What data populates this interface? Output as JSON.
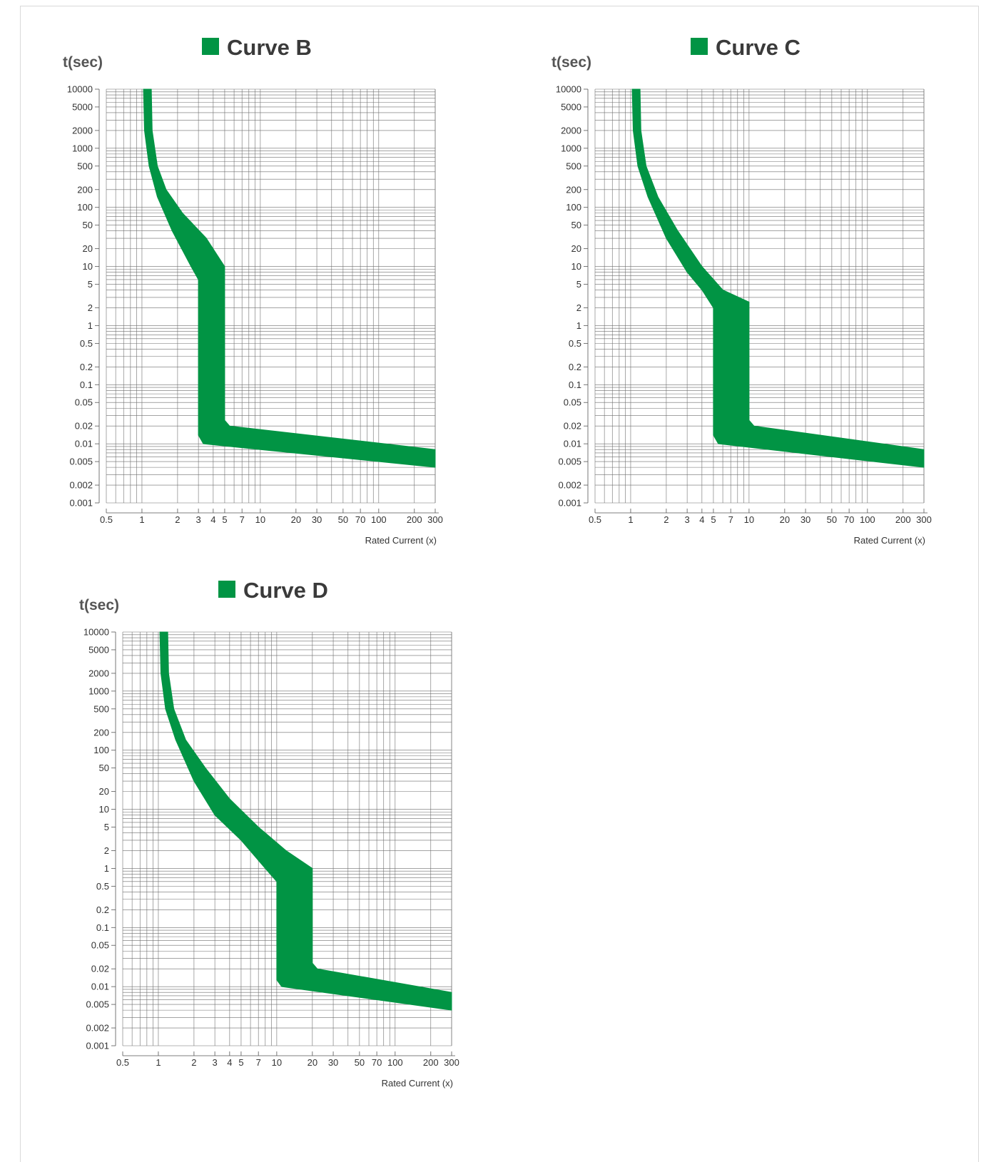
{
  "colors": {
    "band": "#019444",
    "grid": "#6e6e6e",
    "text": "#333333",
    "title": "#3a3a3a"
  },
  "chart_data": [
    {
      "type": "area",
      "title": "Curve B",
      "legend": [
        "Curve B"
      ],
      "ylabel": "t(sec)",
      "xlabel": "Rated Current  (x)",
      "xscale": "log",
      "yscale": "log",
      "xlim": [
        0.5,
        300
      ],
      "ylim": [
        0.001,
        10000
      ],
      "x_ticks": [
        "0.5",
        "1",
        "2",
        "3",
        "4",
        "5",
        "7",
        "10",
        "20",
        "30",
        "50",
        "70",
        "100",
        "200",
        "300"
      ],
      "y_ticks": [
        "10000",
        "5000",
        "2000",
        "1000",
        "500",
        "200",
        "100",
        "50",
        "20",
        "10",
        "5",
        "2",
        "1",
        "0.5",
        "0.2",
        "0.1",
        "0.05",
        "0.02",
        "0.01",
        "0.005",
        "0.002",
        "0.001"
      ],
      "grid": true,
      "series": [
        {
          "name": "Curve B",
          "upper_boundary": [
            [
              1.2,
              10000
            ],
            [
              1.22,
              2000
            ],
            [
              1.35,
              500
            ],
            [
              1.6,
              200
            ],
            [
              2.2,
              80
            ],
            [
              3.5,
              30
            ],
            [
              5,
              10
            ],
            [
              5,
              0.025
            ],
            [
              5.5,
              0.02
            ],
            [
              300,
              0.008
            ]
          ],
          "lower_boundary": [
            [
              1.03,
              10000
            ],
            [
              1.05,
              2000
            ],
            [
              1.15,
              500
            ],
            [
              1.35,
              150
            ],
            [
              1.8,
              40
            ],
            [
              2.6,
              10
            ],
            [
              3,
              6
            ],
            [
              3,
              0.014
            ],
            [
              3.3,
              0.01
            ],
            [
              300,
              0.004
            ]
          ]
        }
      ]
    },
    {
      "type": "area",
      "title": "Curve C",
      "legend": [
        "Curve C"
      ],
      "ylabel": "t(sec)",
      "xlabel": "Rated Current  (x)",
      "xscale": "log",
      "yscale": "log",
      "xlim": [
        0.5,
        300
      ],
      "ylim": [
        0.001,
        10000
      ],
      "x_ticks": [
        "0.5",
        "1",
        "2",
        "3",
        "4",
        "5",
        "7",
        "10",
        "20",
        "30",
        "50",
        "70",
        "100",
        "200",
        "300"
      ],
      "y_ticks": [
        "10000",
        "5000",
        "2000",
        "1000",
        "500",
        "200",
        "100",
        "50",
        "20",
        "10",
        "5",
        "2",
        "1",
        "0.5",
        "0.2",
        "0.1",
        "0.05",
        "0.02",
        "0.01",
        "0.005",
        "0.002",
        "0.001"
      ],
      "grid": true,
      "series": [
        {
          "name": "Curve C",
          "upper_boundary": [
            [
              1.2,
              10000
            ],
            [
              1.22,
              2000
            ],
            [
              1.35,
              500
            ],
            [
              1.7,
              150
            ],
            [
              2.5,
              40
            ],
            [
              4,
              10
            ],
            [
              6,
              4
            ],
            [
              10,
              2.5
            ],
            [
              10,
              0.025
            ],
            [
              11,
              0.02
            ],
            [
              300,
              0.008
            ]
          ],
          "lower_boundary": [
            [
              1.03,
              10000
            ],
            [
              1.05,
              2000
            ],
            [
              1.15,
              500
            ],
            [
              1.4,
              150
            ],
            [
              2,
              30
            ],
            [
              3,
              8
            ],
            [
              4,
              4
            ],
            [
              5,
              2
            ],
            [
              5,
              0.014
            ],
            [
              5.5,
              0.01
            ],
            [
              300,
              0.004
            ]
          ]
        }
      ]
    },
    {
      "type": "area",
      "title": "Curve D",
      "legend": [
        "Curve D"
      ],
      "ylabel": "t(sec)",
      "xlabel": "Rated Current  (x)",
      "xscale": "log",
      "yscale": "log",
      "xlim": [
        0.5,
        300
      ],
      "ylim": [
        0.001,
        10000
      ],
      "x_ticks": [
        "0.5",
        "1",
        "2",
        "3",
        "4",
        "5",
        "7",
        "10",
        "20",
        "30",
        "50",
        "70",
        "100",
        "200",
        "300"
      ],
      "y_ticks": [
        "10000",
        "5000",
        "2000",
        "1000",
        "500",
        "200",
        "100",
        "50",
        "20",
        "10",
        "5",
        "2",
        "1",
        "0.5",
        "0.2",
        "0.1",
        "0.05",
        "0.02",
        "0.01",
        "0.005",
        "0.002",
        "0.001"
      ],
      "grid": true,
      "series": [
        {
          "name": "Curve D",
          "upper_boundary": [
            [
              1.2,
              10000
            ],
            [
              1.22,
              2000
            ],
            [
              1.35,
              500
            ],
            [
              1.7,
              150
            ],
            [
              2.5,
              50
            ],
            [
              4,
              15
            ],
            [
              7,
              5
            ],
            [
              12,
              2
            ],
            [
              20,
              1
            ],
            [
              20,
              0.025
            ],
            [
              22,
              0.02
            ],
            [
              300,
              0.008
            ]
          ],
          "lower_boundary": [
            [
              1.03,
              10000
            ],
            [
              1.05,
              2000
            ],
            [
              1.15,
              500
            ],
            [
              1.4,
              150
            ],
            [
              2,
              30
            ],
            [
              3,
              8
            ],
            [
              5,
              3
            ],
            [
              8,
              1
            ],
            [
              10,
              0.6
            ],
            [
              10,
              0.013
            ],
            [
              11,
              0.01
            ],
            [
              300,
              0.004
            ]
          ]
        }
      ]
    }
  ]
}
